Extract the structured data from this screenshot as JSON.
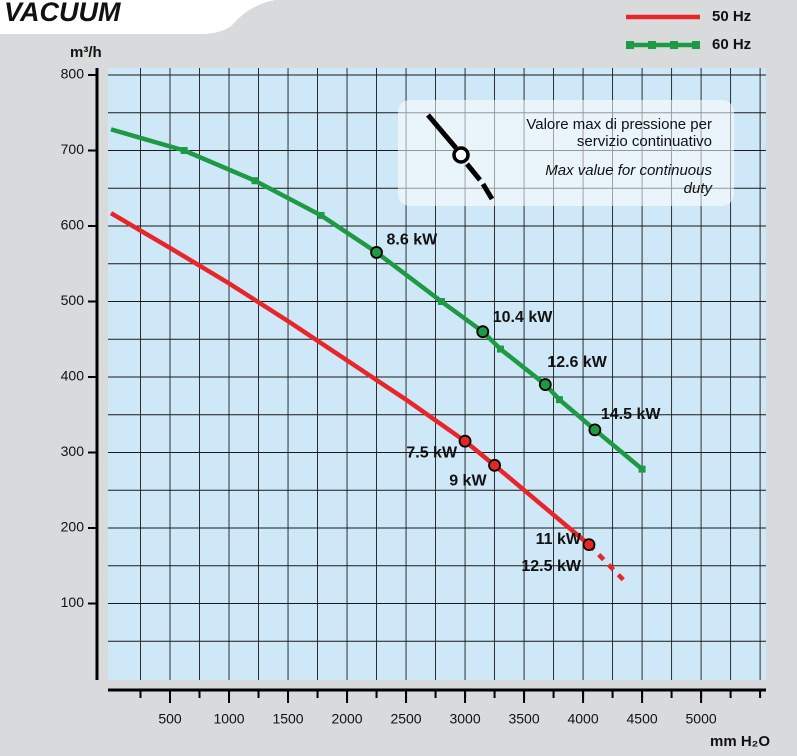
{
  "chart_data": {
    "type": "line",
    "title": "VACUUM",
    "y_label": "m³/h",
    "x_label": "mm H₂O",
    "xlim": [
      0,
      5550
    ],
    "ylim": [
      0,
      800
    ],
    "xticks": [
      500,
      1000,
      1500,
      2000,
      2500,
      3000,
      3500,
      4000,
      4500,
      5000
    ],
    "yticks": [
      100,
      200,
      300,
      400,
      500,
      600,
      700,
      800
    ],
    "xgrid": [
      250,
      500,
      750,
      1000,
      1250,
      1500,
      1750,
      2000,
      2250,
      2500,
      2750,
      3000,
      3250,
      3500,
      3750,
      4000,
      4250,
      4500,
      4750,
      5000,
      5250,
      5500
    ],
    "ygrid": [
      50,
      100,
      150,
      200,
      250,
      300,
      350,
      400,
      450,
      500,
      550,
      600,
      650,
      700,
      750,
      800
    ],
    "grid": true,
    "legend": "top-right",
    "note": [
      "Valore max di pressione per",
      "servizio continuativo",
      "Max value for continuous",
      "duty"
    ],
    "series": [
      {
        "name": "50 Hz",
        "color": "#e8262a",
        "marker": "none",
        "dashed_from": 8,
        "x": [
          0,
          500,
          1000,
          1500,
          2000,
          2500,
          3000,
          3250,
          4050,
          4350
        ],
        "values": [
          617,
          571,
          524,
          474,
          422,
          370,
          315,
          283,
          178,
          130
        ],
        "points": [
          {
            "x": 3000,
            "y": 315,
            "labels": [
              "7.5 kW"
            ]
          },
          {
            "x": 3250,
            "y": 283,
            "labels": [
              "9 kW"
            ]
          },
          {
            "x": 4050,
            "y": 178,
            "labels": [
              "11 kW",
              "12.5 kW"
            ]
          }
        ]
      },
      {
        "name": "60 Hz",
        "color": "#1e9a45",
        "marker": "square",
        "dashed_from": 11,
        "x": [
          0,
          620,
          1220,
          1780,
          2250,
          2800,
          3150,
          3300,
          3680,
          3800,
          4100,
          4500
        ],
        "values": [
          728,
          700,
          660,
          614,
          565,
          500,
          460,
          437,
          390,
          370,
          330,
          278
        ],
        "points": [
          {
            "x": 2250,
            "y": 565,
            "labels": [
              "8.6 kW"
            ]
          },
          {
            "x": 3150,
            "y": 460,
            "labels": [
              "10.4 kW"
            ]
          },
          {
            "x": 3680,
            "y": 390,
            "labels": [
              "12.6 kW"
            ]
          },
          {
            "x": 4100,
            "y": 330,
            "labels": [
              "14.5 kW"
            ]
          }
        ]
      }
    ]
  }
}
